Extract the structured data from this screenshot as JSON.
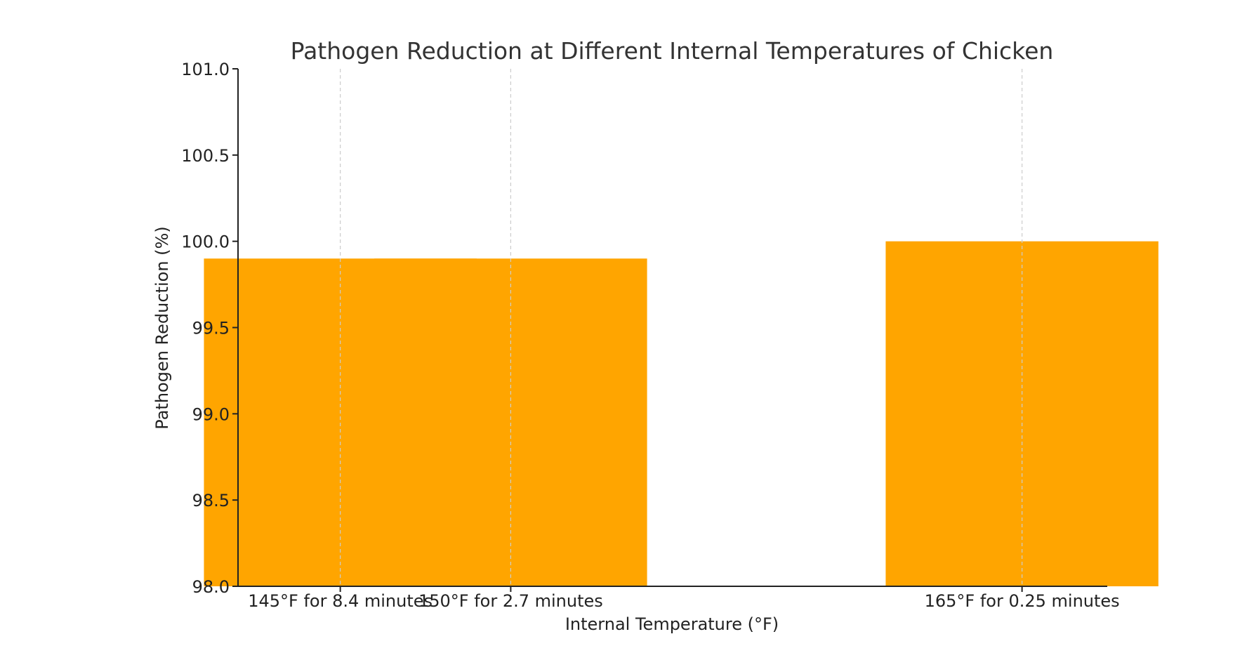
{
  "chart_data": {
    "type": "bar",
    "title": "Pathogen Reduction at Different Internal Temperatures of Chicken",
    "xlabel": "Internal Temperature (°F)",
    "ylabel": "Pathogen Reduction (%)",
    "x_axis": "numeric temperature (°F)",
    "x": [
      145,
      150,
      165
    ],
    "xlim": [
      142,
      167.5
    ],
    "categories": [
      "145°F for 8.4 minutes",
      "150°F for 2.7 minutes",
      "165°F for 0.25 minutes"
    ],
    "values": [
      99.9,
      99.9,
      100.0
    ],
    "ylim": [
      98.0,
      101.0
    ],
    "yticks": [
      "98.0",
      "98.5",
      "99.0",
      "99.5",
      "100.0",
      "100.5",
      "101.0"
    ],
    "grid": "vertical dashed at x ticks",
    "bar_color": "#FFA500",
    "grid_color": "#cccccc",
    "axis_color": "#222222"
  }
}
